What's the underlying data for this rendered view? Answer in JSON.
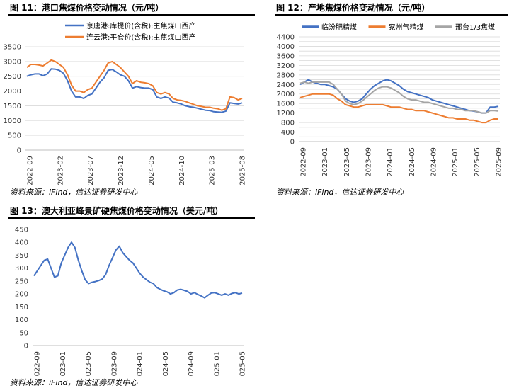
{
  "figures": [
    {
      "caption": "图 11：港口焦煤价格变动情况（元/吨）",
      "source": "资料来源：iFind，信达证券研发中心",
      "chart_data": {
        "type": "line",
        "x_ticks": [
          "2022-09",
          "2023-02",
          "2023-07",
          "2023-12",
          "2024-05",
          "2024-10",
          "2025-03",
          "2025-08"
        ],
        "ylim": [
          0,
          3500
        ],
        "y_ticks": [
          0,
          500,
          1000,
          1500,
          2000,
          2500,
          3000,
          3500
        ],
        "grid": true,
        "legend": "top-right",
        "series": [
          {
            "name": "京唐港:库提价(含税):主焦煤山西产",
            "color": "#4472C4",
            "values": [
              2500,
              2550,
              2580,
              2580,
              2520,
              2580,
              2750,
              2740,
              2700,
              2600,
              2350,
              2000,
              1800,
              1800,
              1750,
              1850,
              1900,
              2100,
              2300,
              2450,
              2700,
              2730,
              2650,
              2550,
              2500,
              2350,
              2100,
              2150,
              2120,
              2100,
              2100,
              2050,
              1800,
              1750,
              1800,
              1760,
              1620,
              1600,
              1560,
              1500,
              1470,
              1450,
              1420,
              1380,
              1350,
              1340,
              1300,
              1290,
              1280,
              1320,
              1600,
              1580,
              1560,
              1600
            ]
          },
          {
            "name": "连云港:平仓价(含税):主焦煤山西产",
            "color": "#ED7D31",
            "values": [
              2800,
              2900,
              2900,
              2880,
              2850,
              2950,
              3050,
              3000,
              2900,
              2800,
              2550,
              2200,
              2000,
              2000,
              1950,
              2050,
              2100,
              2300,
              2500,
              2700,
              2950,
              3000,
              2900,
              2800,
              2650,
              2500,
              2250,
              2350,
              2300,
              2280,
              2250,
              2180,
              1950,
              1900,
              1950,
              1900,
              1750,
              1700,
              1680,
              1650,
              1600,
              1550,
              1500,
              1480,
              1450,
              1450,
              1420,
              1400,
              1350,
              1400,
              1800,
              1780,
              1700,
              1750
            ]
          }
        ]
      }
    },
    {
      "caption": "图 12：产地焦煤价格变动情况（元/吨）",
      "source": "资料来源：iFind，信达证券研发中心",
      "chart_data": {
        "type": "line",
        "x_ticks": [
          "2022-09",
          "2023-01",
          "2023-05",
          "2023-09",
          "2024-01",
          "2024-05",
          "2024-09",
          "2025-01",
          "2025-05",
          "2025-09"
        ],
        "ylim": [
          0,
          4400
        ],
        "y_ticks": [
          0,
          200,
          400,
          600,
          800,
          1000,
          1200,
          1400,
          1600,
          1800,
          2000,
          2200,
          2400,
          2600,
          2800,
          3000,
          3200,
          3400,
          3600,
          3800,
          4000,
          4200,
          4400
        ],
        "y_tick_labels": [
          0,
          400,
          800,
          1200,
          1600,
          2000,
          2400,
          2800,
          3200,
          3600,
          4000,
          4400
        ],
        "grid": true,
        "legend": "top",
        "series": [
          {
            "name": "临汾肥精煤",
            "color": "#4472C4",
            "values": [
              2400,
              2500,
              2600,
              2500,
              2450,
              2400,
              2400,
              2350,
              2300,
              2200,
              2000,
              1800,
              1700,
              1650,
              1700,
              1800,
              2000,
              2200,
              2350,
              2450,
              2550,
              2600,
              2550,
              2450,
              2350,
              2200,
              2100,
              2050,
              2000,
              1950,
              1900,
              1850,
              1750,
              1700,
              1650,
              1600,
              1550,
              1500,
              1450,
              1400,
              1350,
              1300,
              1280,
              1250,
              1200,
              1200,
              1450,
              1450,
              1480
            ]
          },
          {
            "name": "兖州气精煤",
            "color": "#ED7D31",
            "values": [
              1850,
              1900,
              1950,
              2000,
              2000,
              2000,
              2000,
              2000,
              1950,
              1800,
              1700,
              1550,
              1500,
              1450,
              1450,
              1500,
              1550,
              1550,
              1550,
              1550,
              1550,
              1500,
              1450,
              1450,
              1450,
              1400,
              1350,
              1350,
              1300,
              1300,
              1300,
              1250,
              1200,
              1150,
              1100,
              1050,
              1000,
              1000,
              950,
              950,
              950,
              900,
              900,
              850,
              800,
              800,
              900,
              950,
              950
            ]
          },
          {
            "name": "邢台1/3焦煤",
            "color": "#A5A5A5",
            "values": [
              2450,
              2500,
              2450,
              2500,
              2500,
              2500,
              2500,
              2500,
              2400,
              2200,
              2000,
              1700,
              1600,
              1550,
              1600,
              1700,
              1850,
              2000,
              2150,
              2250,
              2300,
              2300,
              2250,
              2150,
              2050,
              1900,
              1800,
              1750,
              1750,
              1700,
              1650,
              1650,
              1600,
              1550,
              1500,
              1450,
              1400,
              1400,
              1350,
              1350,
              1300,
              1300,
              1300,
              1250,
              1200,
              1200,
              1300,
              1300,
              1280
            ]
          }
        ]
      }
    },
    {
      "caption": "图 13：澳大利亚峰景矿硬焦煤价格变动情况（美元/吨）",
      "source": "资料来源：iFind，信达证券研发中心",
      "chart_data": {
        "type": "line",
        "x_ticks": [
          "2022-09",
          "2023-01",
          "2023-05",
          "2023-09",
          "2024-01",
          "2024-05",
          "2024-09",
          "2025-01",
          "2025-05"
        ],
        "ylim": [
          0,
          450
        ],
        "y_ticks": [
          0,
          50,
          100,
          150,
          200,
          250,
          300,
          350,
          400,
          450
        ],
        "grid": false,
        "series": [
          {
            "name": "",
            "color": "#4472C4",
            "values": [
              270,
              290,
              310,
              330,
              335,
              300,
              265,
              270,
              320,
              350,
              380,
              400,
              380,
              330,
              290,
              255,
              240,
              245,
              248,
              252,
              258,
              275,
              310,
              340,
              370,
              385,
              360,
              345,
              330,
              320,
              300,
              280,
              265,
              255,
              245,
              240,
              225,
              218,
              212,
              208,
              200,
              205,
              215,
              218,
              214,
              210,
              200,
              205,
              198,
              192,
              185,
              195,
              204,
              205,
              200,
              195,
              200,
              195,
              202,
              205,
              200,
              203
            ]
          }
        ]
      }
    }
  ]
}
